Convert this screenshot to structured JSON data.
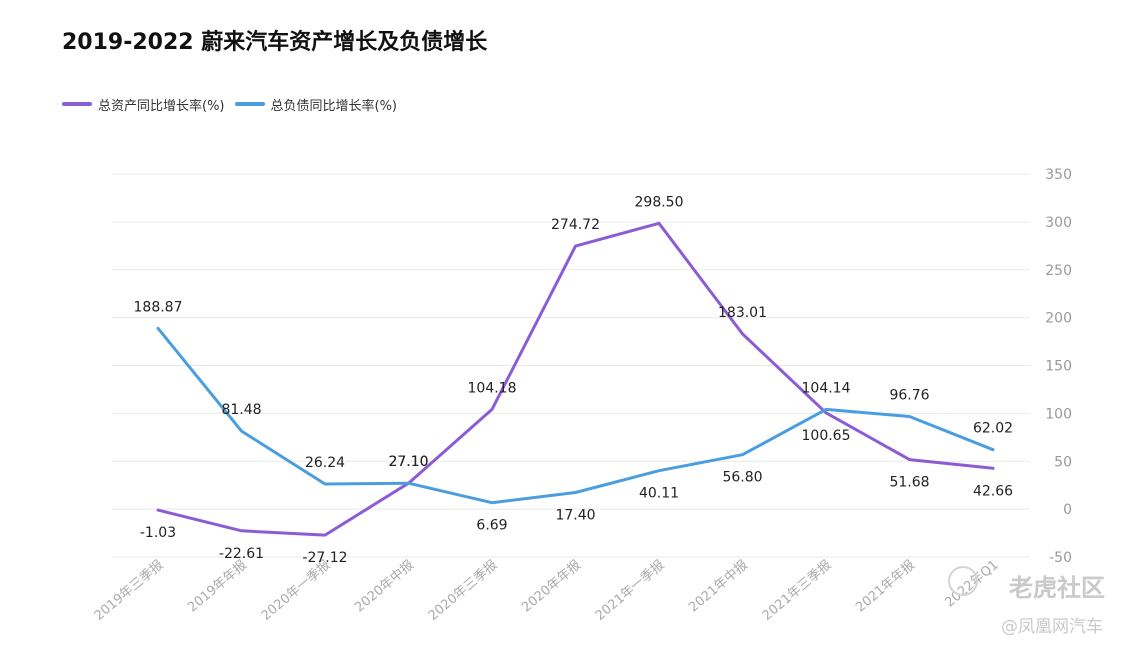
{
  "chart_data": {
    "type": "line",
    "title": "2019-2022 蔚来汽车资产增长及负债增长",
    "categories": [
      "2019年三季报",
      "2019年年报",
      "2020年一季报",
      "2020年中报",
      "2020年三季报",
      "2020年年报",
      "2021年一季报",
      "2021年中报",
      "2021年三季报",
      "2021年年报",
      "2022年Q1"
    ],
    "series": [
      {
        "name": "总资产同比增长率(%)",
        "color": "#8b5cd6",
        "values": [
          -1.03,
          -22.61,
          -27.12,
          27.1,
          104.18,
          274.72,
          298.5,
          183.01,
          100.65,
          51.68,
          42.66
        ],
        "labels": [
          "-1.03",
          "-22.61",
          "-27.12",
          "27.10",
          "104.18",
          "274.72",
          "298.50",
          "183.01",
          "100.65",
          "51.68",
          "42.66"
        ]
      },
      {
        "name": "总负债同比增长率(%)",
        "color": "#4a9ee0",
        "values": [
          188.87,
          81.48,
          26.24,
          27.1,
          6.69,
          17.4,
          40.11,
          56.8,
          104.14,
          96.76,
          62.02
        ],
        "labels": [
          "188.87",
          "81.48",
          "26.24",
          "27.10",
          "6.69",
          "17.40",
          "40.11",
          "56.80",
          "104.14",
          "96.76",
          "62.02"
        ]
      }
    ],
    "y_ticks": [
      "350",
      "300",
      "250",
      "200",
      "150",
      "100",
      "50",
      "0",
      "-50"
    ],
    "ylim": [
      -50,
      350
    ],
    "xlabel": "",
    "ylabel": "",
    "grid": true,
    "legend": "top-left"
  },
  "watermark": {
    "line1": "老虎社区",
    "line2": "@凤凰网汽车"
  }
}
